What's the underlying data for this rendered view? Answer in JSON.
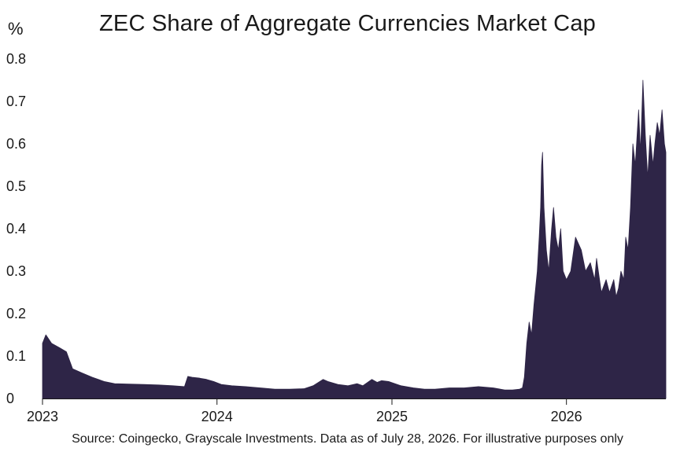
{
  "chart_data": {
    "type": "area",
    "title": "ZEC Share of Aggregate Currencies Market Cap",
    "ylabel": "%",
    "xlabel": "",
    "source": "Source: Coingecko, Grayscale Investments. Data as of July 28, 2026. For illustrative purposes only",
    "x_tick_labels": [
      "2023",
      "2024",
      "2025",
      "2026"
    ],
    "y_tick_labels": [
      "0",
      "0.1",
      "0.2",
      "0.3",
      "0.4",
      "0.5",
      "0.6",
      "0.7",
      "0.8"
    ],
    "ylim": [
      0,
      0.8
    ],
    "xlim": [
      "2023-01-01",
      "2026-07-28"
    ],
    "grid": false,
    "series": [
      {
        "color": "#2e2547",
        "x": [
          "2023-01-01",
          "2023-01-08",
          "2023-01-20",
          "2023-02-05",
          "2023-02-20",
          "2023-03-05",
          "2023-03-25",
          "2023-04-15",
          "2023-05-10",
          "2023-06-01",
          "2023-07-01",
          "2023-08-01",
          "2023-09-01",
          "2023-10-01",
          "2023-10-25",
          "2023-11-01",
          "2023-11-10",
          "2023-11-25",
          "2023-12-10",
          "2023-12-25",
          "2024-01-10",
          "2024-02-01",
          "2024-03-01",
          "2024-04-01",
          "2024-05-01",
          "2024-06-01",
          "2024-07-01",
          "2024-07-20",
          "2024-08-10",
          "2024-08-20",
          "2024-09-10",
          "2024-10-01",
          "2024-10-20",
          "2024-11-01",
          "2024-11-20",
          "2024-12-01",
          "2024-12-10",
          "2024-12-25",
          "2025-01-20",
          "2025-02-15",
          "2025-03-10",
          "2025-04-01",
          "2025-05-01",
          "2025-06-01",
          "2025-07-01",
          "2025-08-01",
          "2025-08-25",
          "2025-09-10",
          "2025-09-25",
          "2025-10-01",
          "2025-10-05",
          "2025-10-10",
          "2025-10-15",
          "2025-10-20",
          "2025-10-25",
          "2025-11-01",
          "2025-11-05",
          "2025-11-08",
          "2025-11-10",
          "2025-11-12",
          "2025-11-15",
          "2025-11-20",
          "2025-11-25",
          "2025-12-01",
          "2025-12-05",
          "2025-12-10",
          "2025-12-15",
          "2025-12-20",
          "2025-12-25",
          "2026-01-01",
          "2026-01-10",
          "2026-01-20",
          "2026-02-01",
          "2026-02-10",
          "2026-02-20",
          "2026-03-01",
          "2026-03-05",
          "2026-03-15",
          "2026-03-25",
          "2026-04-01",
          "2026-04-10",
          "2026-04-15",
          "2026-04-20",
          "2026-04-25",
          "2026-05-01",
          "2026-05-05",
          "2026-05-10",
          "2026-05-15",
          "2026-05-20",
          "2026-05-25",
          "2026-06-01",
          "2026-06-05",
          "2026-06-10",
          "2026-06-15",
          "2026-06-20",
          "2026-06-25",
          "2026-07-01",
          "2026-07-05",
          "2026-07-10",
          "2026-07-15",
          "2026-07-20",
          "2026-07-25",
          "2026-07-28"
        ],
        "values": [
          0.13,
          0.15,
          0.13,
          0.12,
          0.11,
          0.07,
          0.06,
          0.05,
          0.04,
          0.035,
          0.034,
          0.033,
          0.032,
          0.03,
          0.028,
          0.052,
          0.05,
          0.048,
          0.045,
          0.04,
          0.033,
          0.03,
          0.028,
          0.025,
          0.022,
          0.022,
          0.023,
          0.03,
          0.045,
          0.04,
          0.033,
          0.03,
          0.035,
          0.03,
          0.045,
          0.038,
          0.042,
          0.04,
          0.03,
          0.025,
          0.022,
          0.022,
          0.025,
          0.025,
          0.028,
          0.025,
          0.02,
          0.02,
          0.022,
          0.025,
          0.05,
          0.13,
          0.18,
          0.15,
          0.22,
          0.3,
          0.38,
          0.45,
          0.55,
          0.58,
          0.45,
          0.35,
          0.3,
          0.4,
          0.45,
          0.38,
          0.35,
          0.4,
          0.3,
          0.28,
          0.3,
          0.38,
          0.35,
          0.3,
          0.32,
          0.28,
          0.33,
          0.25,
          0.28,
          0.25,
          0.28,
          0.24,
          0.26,
          0.3,
          0.28,
          0.38,
          0.35,
          0.45,
          0.6,
          0.55,
          0.68,
          0.58,
          0.75,
          0.62,
          0.52,
          0.62,
          0.55,
          0.6,
          0.65,
          0.62,
          0.68,
          0.6,
          0.58
        ]
      }
    ]
  }
}
